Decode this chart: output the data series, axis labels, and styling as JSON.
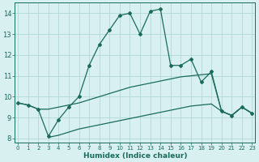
{
  "xlabel": "Humidex (Indice chaleur)",
  "x": [
    0,
    1,
    2,
    3,
    4,
    5,
    6,
    7,
    8,
    9,
    10,
    11,
    12,
    13,
    14,
    15,
    16,
    17,
    18,
    19,
    20,
    21,
    22,
    23
  ],
  "main_line": [
    9.7,
    9.6,
    9.4,
    8.1,
    8.9,
    9.5,
    10.0,
    11.5,
    12.5,
    13.2,
    13.9,
    14.0,
    13.0,
    14.1,
    14.2,
    11.5,
    11.5,
    11.8,
    10.7,
    11.2,
    9.3,
    9.1,
    9.5,
    9.2
  ],
  "upper_smooth": [
    9.7,
    9.6,
    9.4,
    9.4,
    9.5,
    9.6,
    9.7,
    9.85,
    10.0,
    10.15,
    10.3,
    10.45,
    10.55,
    10.65,
    10.75,
    10.85,
    10.95,
    11.0,
    11.05,
    11.1,
    9.3,
    9.1,
    9.5,
    9.2
  ],
  "lower_smooth": [
    null,
    null,
    null,
    8.05,
    8.15,
    8.3,
    8.45,
    8.55,
    8.65,
    8.75,
    8.85,
    8.95,
    9.05,
    9.15,
    9.25,
    9.35,
    9.45,
    9.55,
    9.6,
    9.65,
    9.3,
    9.1,
    9.5,
    9.2
  ],
  "color": "#1a6b5a",
  "bg_color": "#d8f0f0",
  "grid_color": "#aad4d4",
  "ylim": [
    7.8,
    14.5
  ],
  "xlim": [
    -0.3,
    23.3
  ]
}
